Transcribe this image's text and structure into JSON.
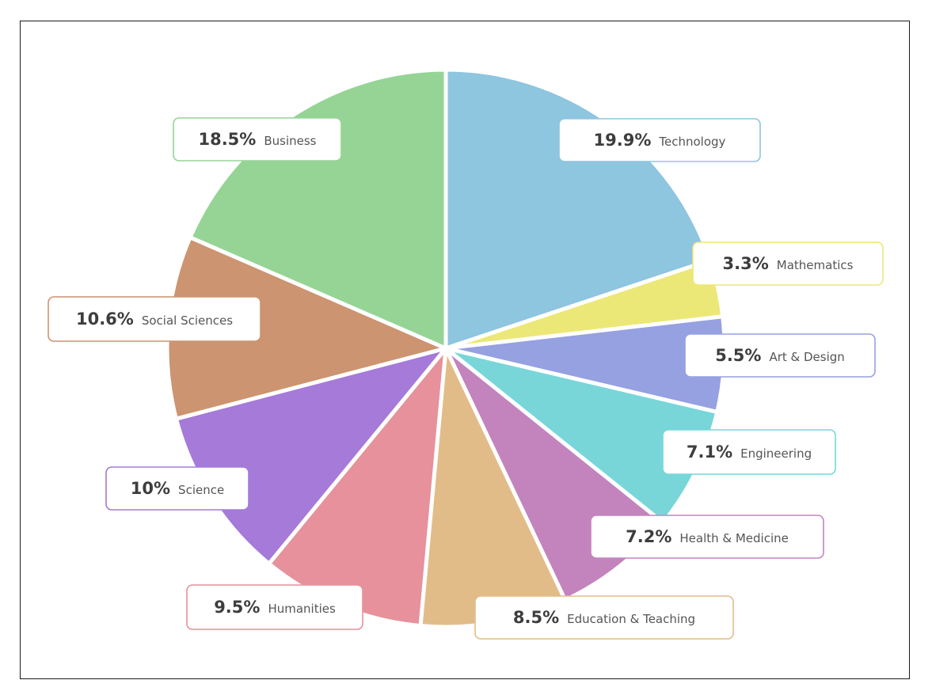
{
  "chart_data": {
    "type": "pie",
    "title": "",
    "slices": [
      {
        "label": "Technology",
        "value": 19.9,
        "value_text": "19.9%",
        "color": "#8ec5df"
      },
      {
        "label": "Mathematics",
        "value": 3.3,
        "value_text": "3.3%",
        "color": "#ece877"
      },
      {
        "label": "Art & Design",
        "value": 5.5,
        "value_text": "5.5%",
        "color": "#96a1e1"
      },
      {
        "label": "Engineering",
        "value": 7.1,
        "value_text": "7.1%",
        "color": "#78d6d9"
      },
      {
        "label": "Health & Medicine",
        "value": 7.2,
        "value_text": "7.2%",
        "color": "#c384bd"
      },
      {
        "label": "Education & Teaching",
        "value": 8.5,
        "value_text": "8.5%",
        "color": "#e2bc88"
      },
      {
        "label": "Humanities",
        "value": 9.5,
        "value_text": "9.5%",
        "color": "#e6919b"
      },
      {
        "label": "Science",
        "value": 10,
        "value_text": "10%",
        "color": "#a57ad9"
      },
      {
        "label": "Social Sciences",
        "value": 10.6,
        "value_text": "10.6%",
        "color": "#cc9470"
      },
      {
        "label": "Business",
        "value": 18.5,
        "value_text": "18.5%",
        "color": "#95d495"
      }
    ],
    "legend": "none",
    "label_style": "boxed callouts"
  }
}
